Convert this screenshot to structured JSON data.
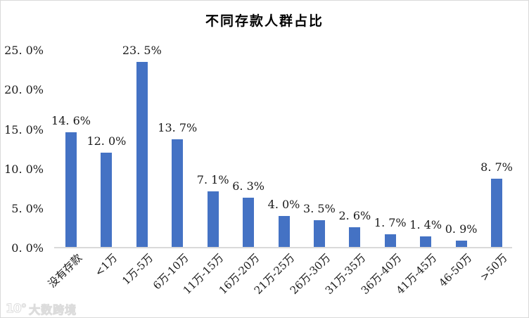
{
  "title": "不同存款人群占比",
  "watermark": {
    "logo": "10°",
    "text": "大数跨境"
  },
  "chart_data": {
    "type": "bar",
    "title": "不同存款人群占比",
    "categories": [
      "没有存款",
      "<1万",
      "1万-5万",
      "6万-10万",
      "11万-15万",
      "16万-20万",
      "21万-25万",
      "26万-30万",
      "31万-35万",
      "36万-40万",
      "41万-45万",
      "46-50万",
      ">50万"
    ],
    "values": [
      14.6,
      12.0,
      23.5,
      13.7,
      7.1,
      6.3,
      4.0,
      3.5,
      2.6,
      1.7,
      1.4,
      0.9,
      8.7
    ],
    "value_labels": [
      "14. 6%",
      "12. 0%",
      "23. 5%",
      "13. 7%",
      "7. 1%",
      "6. 3%",
      "4. 0%",
      "3. 5%",
      "2. 6%",
      "1. 7%",
      "1. 4%",
      "0. 9%",
      "8. 7%"
    ],
    "y_ticks": {
      "values": [
        0,
        5,
        10,
        15,
        20,
        25
      ],
      "labels": [
        "0. 0%",
        "5. 0%",
        "10. 0%",
        "15. 0%",
        "20. 0%",
        "25. 0%"
      ]
    },
    "ylim": [
      0,
      25
    ],
    "xlabel": "",
    "ylabel": "",
    "grid": false,
    "legend": false,
    "x_label_rotation_deg": -45,
    "bar_color": "#4472C4",
    "axis_line_color": "#D9D9D9",
    "text_color": "#1A1A1A"
  }
}
